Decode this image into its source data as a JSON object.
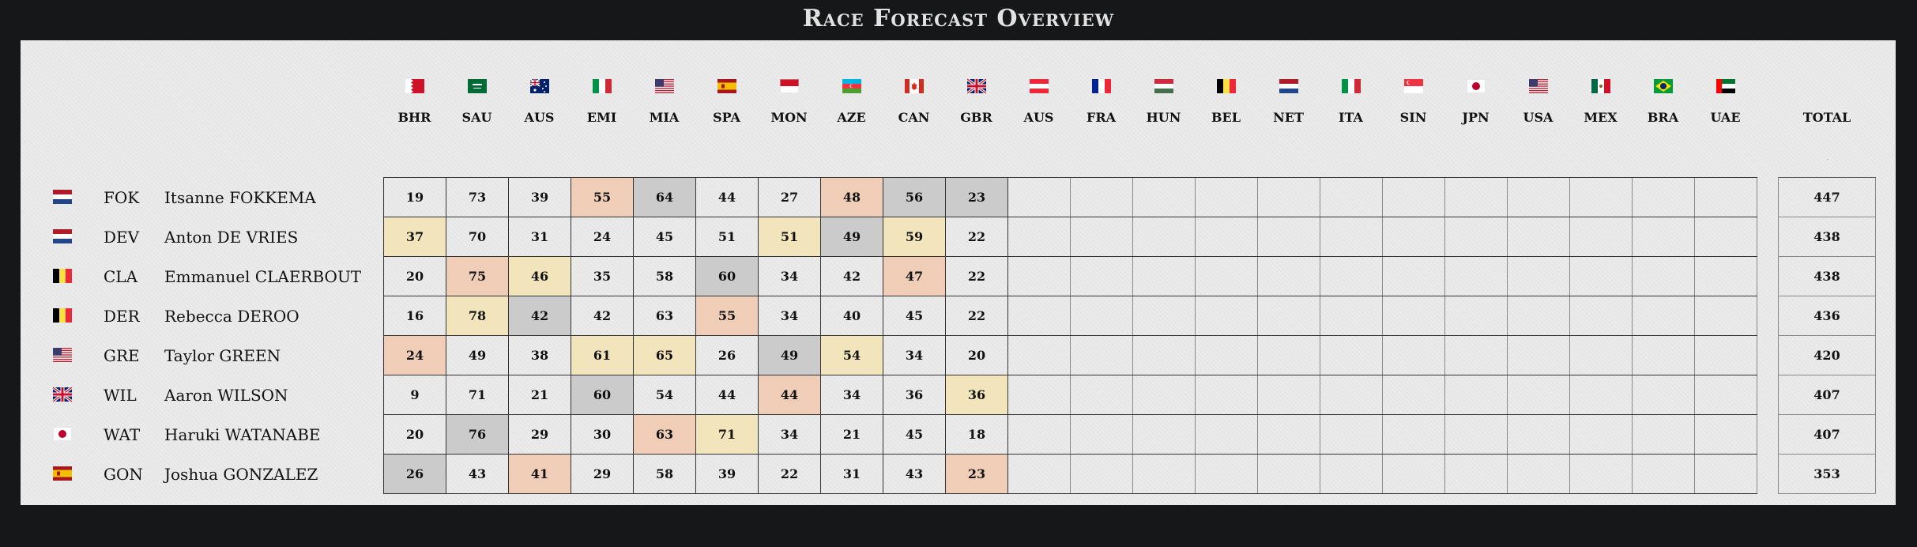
{
  "title": "Race Forecast Overview",
  "colors": {
    "background": "#161719",
    "panel": "#ebebeb",
    "highlight_gray": "#cbcbcb",
    "highlight_salmon": "#efcdb6",
    "highlight_yellow": "#f3e5bb"
  },
  "races": [
    {
      "code": "BHR",
      "flag": "bahrain-flag-icon"
    },
    {
      "code": "SAU",
      "flag": "saudi-arabia-flag-icon"
    },
    {
      "code": "AUS",
      "flag": "australia-flag-icon"
    },
    {
      "code": "EMI",
      "flag": "italy-flag-icon"
    },
    {
      "code": "MIA",
      "flag": "usa-flag-icon"
    },
    {
      "code": "SPA",
      "flag": "spain-flag-icon"
    },
    {
      "code": "MON",
      "flag": "monaco-flag-icon"
    },
    {
      "code": "AZE",
      "flag": "azerbaijan-flag-icon"
    },
    {
      "code": "CAN",
      "flag": "canada-flag-icon"
    },
    {
      "code": "GBR",
      "flag": "uk-flag-icon"
    },
    {
      "code": "AUS",
      "flag": "austria-flag-icon"
    },
    {
      "code": "FRA",
      "flag": "france-flag-icon"
    },
    {
      "code": "HUN",
      "flag": "hungary-flag-icon"
    },
    {
      "code": "BEL",
      "flag": "belgium-flag-icon"
    },
    {
      "code": "NET",
      "flag": "netherlands-flag-icon"
    },
    {
      "code": "ITA",
      "flag": "italy-flag-icon"
    },
    {
      "code": "SIN",
      "flag": "singapore-flag-icon"
    },
    {
      "code": "JPN",
      "flag": "japan-flag-icon"
    },
    {
      "code": "USA",
      "flag": "usa-flag-icon"
    },
    {
      "code": "MEX",
      "flag": "mexico-flag-icon"
    },
    {
      "code": "BRA",
      "flag": "brazil-flag-icon"
    },
    {
      "code": "UAE",
      "flag": "uae-flag-icon"
    }
  ],
  "total_label": "TOTAL",
  "drivers": [
    {
      "flag": "netherlands-flag-icon",
      "code": "FOK",
      "name": "Itsanne FOKKEMA",
      "total": "447",
      "scores": [
        "19",
        "73",
        "39",
        "55",
        "64",
        "44",
        "27",
        "48",
        "56",
        "23"
      ],
      "highlights": [
        "",
        "",
        "",
        "salmon",
        "gray",
        "",
        "",
        "salmon",
        "gray",
        "gray"
      ]
    },
    {
      "flag": "netherlands-flag-icon",
      "code": "DEV",
      "name": "Anton DE VRIES",
      "total": "438",
      "scores": [
        "37",
        "70",
        "31",
        "24",
        "45",
        "51",
        "51",
        "49",
        "59",
        "22"
      ],
      "highlights": [
        "yellow",
        "",
        "",
        "",
        "",
        "",
        "yellow",
        "gray",
        "yellow",
        ""
      ]
    },
    {
      "flag": "belgium-flag-icon",
      "code": "CLA",
      "name": "Emmanuel CLAERBOUT",
      "total": "438",
      "scores": [
        "20",
        "75",
        "46",
        "35",
        "58",
        "60",
        "34",
        "42",
        "47",
        "22"
      ],
      "highlights": [
        "",
        "salmon",
        "yellow",
        "",
        "",
        "gray",
        "",
        "",
        "salmon",
        ""
      ]
    },
    {
      "flag": "belgium-flag-icon",
      "code": "DER",
      "name": "Rebecca DEROO",
      "total": "436",
      "scores": [
        "16",
        "78",
        "42",
        "42",
        "63",
        "55",
        "34",
        "40",
        "45",
        "22"
      ],
      "highlights": [
        "",
        "yellow",
        "gray",
        "",
        "",
        "salmon",
        "",
        "",
        "",
        ""
      ]
    },
    {
      "flag": "usa-flag-icon",
      "code": "GRE",
      "name": "Taylor GREEN",
      "total": "420",
      "scores": [
        "24",
        "49",
        "38",
        "61",
        "65",
        "26",
        "49",
        "54",
        "34",
        "20"
      ],
      "highlights": [
        "salmon",
        "",
        "",
        "yellow",
        "yellow",
        "",
        "gray",
        "yellow",
        "",
        ""
      ]
    },
    {
      "flag": "uk-flag-icon",
      "code": "WIL",
      "name": "Aaron WILSON",
      "total": "407",
      "scores": [
        "9",
        "71",
        "21",
        "60",
        "54",
        "44",
        "44",
        "34",
        "36",
        "36"
      ],
      "highlights": [
        "",
        "",
        "",
        "gray",
        "",
        "",
        "salmon",
        "",
        "",
        "yellow"
      ]
    },
    {
      "flag": "japan-flag-icon",
      "code": "WAT",
      "name": "Haruki WATANABE",
      "total": "407",
      "scores": [
        "20",
        "76",
        "29",
        "30",
        "63",
        "71",
        "34",
        "21",
        "45",
        "18"
      ],
      "highlights": [
        "",
        "gray",
        "",
        "",
        "salmon",
        "yellow",
        "",
        "",
        "",
        ""
      ]
    },
    {
      "flag": "spain-flag-icon",
      "code": "GON",
      "name": "Joshua GONZALEZ",
      "total": "353",
      "scores": [
        "26",
        "43",
        "41",
        "29",
        "58",
        "39",
        "22",
        "31",
        "43",
        "23"
      ],
      "highlights": [
        "gray",
        "",
        "salmon",
        "",
        "",
        "",
        "",
        "",
        "",
        "salmon"
      ]
    }
  ]
}
